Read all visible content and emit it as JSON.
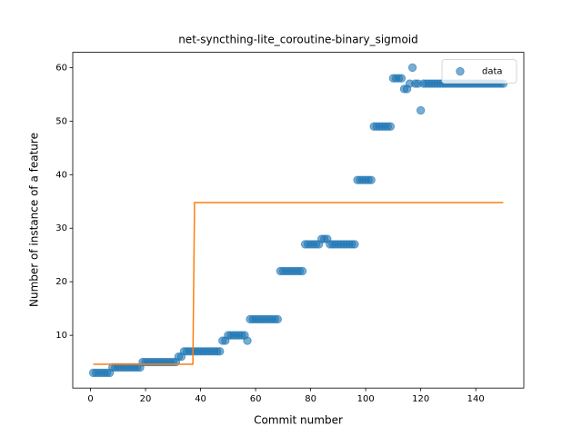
{
  "chart_data": {
    "type": "scatter",
    "title": "net-syncthing-lite_coroutine-binary_sigmoid",
    "xlabel": "Commit number",
    "ylabel": "Number of instance of a feature",
    "xlim": [
      -6.45,
      157.45
    ],
    "ylim": [
      0.15,
      62.85
    ],
    "xticks": [
      0,
      20,
      40,
      60,
      80,
      100,
      120,
      140
    ],
    "yticks": [
      10,
      20,
      30,
      40,
      50,
      60
    ],
    "legend": "upper right",
    "series": [
      {
        "name": "data",
        "type": "scatter",
        "color": "#1f77b4",
        "x": [
          1,
          2,
          3,
          4,
          5,
          6,
          7,
          8,
          9,
          10,
          11,
          12,
          13,
          14,
          15,
          16,
          17,
          18,
          19,
          20,
          21,
          22,
          23,
          24,
          25,
          26,
          27,
          28,
          29,
          30,
          31,
          32,
          33,
          34,
          35,
          36,
          37,
          38,
          39,
          40,
          41,
          42,
          43,
          44,
          45,
          46,
          47,
          48,
          49,
          50,
          51,
          52,
          53,
          54,
          55,
          56,
          57,
          58,
          59,
          60,
          61,
          62,
          63,
          64,
          65,
          66,
          67,
          68,
          69,
          70,
          71,
          72,
          73,
          74,
          75,
          76,
          77,
          78,
          79,
          80,
          81,
          82,
          83,
          84,
          85,
          86,
          87,
          88,
          89,
          90,
          91,
          92,
          93,
          94,
          95,
          96,
          97,
          98,
          99,
          100,
          101,
          102,
          103,
          104,
          105,
          106,
          107,
          108,
          109,
          110,
          111,
          112,
          113,
          114,
          115,
          116,
          117,
          118,
          119,
          120,
          121,
          122,
          123,
          124,
          125,
          126,
          127,
          128,
          129,
          130,
          131,
          132,
          133,
          134,
          135,
          136,
          137,
          138,
          139,
          140,
          141,
          142,
          143,
          144,
          145,
          146,
          147,
          148,
          149,
          150
        ],
        "values": [
          3,
          3,
          3,
          3,
          3,
          3,
          3,
          4,
          4,
          4,
          4,
          4,
          4,
          4,
          4,
          4,
          4,
          4,
          5,
          5,
          5,
          5,
          5,
          5,
          5,
          5,
          5,
          5,
          5,
          5,
          5,
          6,
          6,
          7,
          7,
          7,
          7,
          7,
          7,
          7,
          7,
          7,
          7,
          7,
          7,
          7,
          7,
          9,
          9,
          10,
          10,
          10,
          10,
          10,
          10,
          10,
          9,
          13,
          13,
          13,
          13,
          13,
          13,
          13,
          13,
          13,
          13,
          13,
          22,
          22,
          22,
          22,
          22,
          22,
          22,
          22,
          22,
          27,
          27,
          27,
          27,
          27,
          27,
          28,
          28,
          28,
          27,
          27,
          27,
          27,
          27,
          27,
          27,
          27,
          27,
          27,
          39,
          39,
          39,
          39,
          39,
          39,
          49,
          49,
          49,
          49,
          49,
          49,
          49,
          58,
          58,
          58,
          58,
          56,
          56,
          57,
          60,
          57,
          57,
          52,
          57,
          57,
          57,
          57,
          57,
          57,
          57,
          57,
          57,
          57,
          57,
          57,
          57,
          57,
          57,
          57,
          57,
          57,
          57,
          57,
          57,
          57,
          57,
          57,
          57,
          57,
          57,
          57,
          57,
          57
        ]
      },
      {
        "type": "line",
        "color": "#ff7f0e",
        "x": [
          1,
          37.2,
          37.8,
          150
        ],
        "values": [
          4.6,
          4.6,
          34.8,
          34.8
        ]
      }
    ]
  }
}
